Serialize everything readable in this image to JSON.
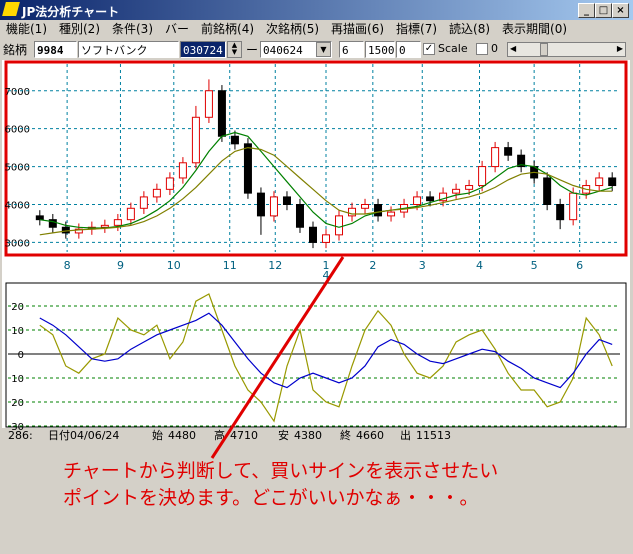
{
  "window": {
    "title": "JP法分析チャート"
  },
  "menu": {
    "items": [
      "機能(1)",
      "種別(2)",
      "条件(3)",
      "バー",
      "前銘柄(4)",
      "次銘柄(5)",
      "再描画(6)",
      "指標(7)",
      "読込(8)",
      "表示期間(0)"
    ]
  },
  "toolbar": {
    "label": "銘柄",
    "code": "9984",
    "name": "ソフトバンク",
    "start": "030724",
    "dash": "ー",
    "end": "040624",
    "field1": "6",
    "field2": "1500",
    "field3": "0",
    "scale": "Scale",
    "check2": "0"
  },
  "chart_data": [
    {
      "type": "candlestick",
      "categories": [
        null,
        null,
        null,
        null,
        null,
        null,
        null,
        null,
        null,
        null,
        null,
        null,
        null,
        null,
        null,
        null,
        null,
        null,
        null,
        null,
        null,
        null,
        null,
        null,
        null,
        null,
        null,
        null,
        null,
        null,
        null,
        null,
        null,
        null,
        null,
        null,
        null,
        null,
        null,
        null,
        null,
        null,
        null,
        null,
        null
      ],
      "open": [
        3700,
        3600,
        3400,
        3250,
        3350,
        3400,
        3450,
        3600,
        3900,
        4200,
        4400,
        4700,
        5100,
        6300,
        7000,
        5800,
        5600,
        4300,
        3700,
        4200,
        4000,
        3400,
        3000,
        3200,
        3700,
        3900,
        4000,
        3700,
        3800,
        4000,
        4200,
        4100,
        4300,
        4400,
        4500,
        5000,
        5500,
        5300,
        5000,
        4700,
        4000,
        3600,
        4300,
        4500,
        4700
      ],
      "high": [
        3850,
        3750,
        3550,
        3500,
        3550,
        3600,
        3750,
        4050,
        4350,
        4550,
        4850,
        5250,
        6600,
        7300,
        7150,
        5950,
        5750,
        4450,
        4350,
        4350,
        4150,
        3550,
        3350,
        3850,
        4050,
        4150,
        4150,
        3950,
        4150,
        4350,
        4350,
        4450,
        4550,
        4650,
        5150,
        5650,
        5650,
        5450,
        5150,
        4850,
        4150,
        4450,
        4650,
        4850,
        4850
      ],
      "low": [
        3450,
        3250,
        3100,
        3100,
        3200,
        3250,
        3300,
        3450,
        3750,
        4050,
        4250,
        4550,
        4950,
        6150,
        5650,
        5450,
        4150,
        3200,
        3550,
        3850,
        3250,
        2850,
        2850,
        3050,
        3550,
        3750,
        3550,
        3550,
        3650,
        3850,
        3950,
        3950,
        4150,
        4250,
        4350,
        4850,
        5150,
        4850,
        4550,
        3850,
        3350,
        3450,
        4150,
        4350,
        4350
      ],
      "close": [
        3600,
        3400,
        3250,
        3350,
        3400,
        3450,
        3600,
        3900,
        4200,
        4400,
        4700,
        5100,
        6300,
        7000,
        5800,
        5600,
        4300,
        3700,
        4200,
        4000,
        3400,
        3000,
        3200,
        3700,
        3900,
        4000,
        3700,
        3800,
        4000,
        4200,
        4100,
        4300,
        4400,
        4500,
        5000,
        5500,
        5300,
        5000,
        4700,
        4000,
        3600,
        4300,
        4500,
        4700,
        4500
      ],
      "up_color": "#e00000",
      "down_color": "#000000",
      "series": [
        {
          "color": "#008000",
          "values": [
            3600,
            3550,
            3450,
            3400,
            3380,
            3380,
            3420,
            3500,
            3650,
            3850,
            4100,
            4450,
            4900,
            5400,
            5800,
            5900,
            5800,
            5400,
            5000,
            4600,
            4200,
            3800,
            3500,
            3400,
            3500,
            3700,
            3800,
            3850,
            3900,
            3950,
            4050,
            4150,
            4250,
            4300,
            4450,
            4700,
            4950,
            5050,
            5000,
            4800,
            4500,
            4300,
            4250,
            4350,
            4450
          ]
        },
        {
          "color": "#808000",
          "values": [
            3200,
            3250,
            3300,
            3330,
            3350,
            3370,
            3400,
            3450,
            3550,
            3700,
            3900,
            4150,
            4450,
            4800,
            5150,
            5400,
            5500,
            5450,
            5300,
            5000,
            4700,
            4400,
            4100,
            3850,
            3750,
            3750,
            3800,
            3850,
            3880,
            3920,
            3980,
            4050,
            4130,
            4200,
            4300,
            4450,
            4650,
            4800,
            4850,
            4800,
            4650,
            4500,
            4400,
            4350,
            4350
          ]
        }
      ],
      "xlim": [
        -0.6,
        44.6
      ],
      "xticks": [
        {
          "value": 2.1,
          "label": "8"
        },
        {
          "value": 6.2,
          "label": "9"
        },
        {
          "value": 10.3,
          "label": "10"
        },
        {
          "value": 14.6,
          "label": "11"
        },
        {
          "value": 18.1,
          "label": "12"
        },
        {
          "value": 22,
          "label": "1"
        },
        {
          "value": 25.6,
          "label": "2"
        },
        {
          "value": 29.4,
          "label": "3"
        },
        {
          "value": 33.8,
          "label": "4"
        },
        {
          "value": 38,
          "label": "5"
        },
        {
          "value": 41.5,
          "label": "6"
        }
      ],
      "year_label": "4",
      "ylim": [
        2800,
        7600
      ],
      "yticks": [
        3000,
        4000,
        5000,
        6000,
        7000
      ],
      "grid": true,
      "grid_color": "#0080a0"
    },
    {
      "type": "line",
      "categories": [
        null,
        null,
        null,
        null,
        null,
        null,
        null,
        null,
        null,
        null,
        null,
        null,
        null,
        null,
        null,
        null,
        null,
        null,
        null,
        null,
        null,
        null,
        null,
        null,
        null,
        null,
        null,
        null,
        null,
        null,
        null,
        null,
        null,
        null,
        null,
        null,
        null,
        null,
        null,
        null,
        null,
        null,
        null,
        null,
        null
      ],
      "series": [
        {
          "color": "#999900",
          "values": [
            12,
            8,
            -5,
            -8,
            -2,
            0,
            15,
            10,
            8,
            12,
            -2,
            5,
            22,
            25,
            10,
            -5,
            -15,
            -20,
            -28,
            -5,
            10,
            -15,
            -20,
            -22,
            -5,
            10,
            18,
            12,
            0,
            -8,
            -10,
            -5,
            5,
            8,
            10,
            2,
            -8,
            -15,
            -15,
            -22,
            -20,
            -10,
            15,
            8,
            -5
          ]
        },
        {
          "color": "#0000cc",
          "values": [
            15,
            12,
            8,
            3,
            -2,
            -3,
            -2,
            2,
            5,
            8,
            10,
            12,
            14,
            17,
            12,
            5,
            -2,
            -8,
            -12,
            -14,
            -10,
            -8,
            -10,
            -12,
            -10,
            -5,
            3,
            6,
            4,
            0,
            -3,
            -4,
            -2,
            0,
            2,
            1,
            -3,
            -6,
            -10,
            -12,
            -14,
            -8,
            0,
            6,
            4
          ]
        }
      ],
      "xlim": [
        -0.6,
        44.6
      ],
      "ylim": [
        -30,
        27.5
      ],
      "yticks": [
        20,
        10,
        0,
        {
          "value": -10,
          "label": "10"
        },
        {
          "value": -20,
          "label": "20"
        },
        {
          "value": -30,
          "label": "30"
        }
      ],
      "grid": true,
      "grid_color": "#008000"
    }
  ],
  "status": {
    "index": "286:",
    "date": "日付04/06/24",
    "open_label": "始",
    "open": 4480,
    "high_label": "高",
    "high": 4710,
    "low_label": "安",
    "low": 4380,
    "close_label": "終",
    "close": 4660,
    "volume_label": "出",
    "volume": 11513
  },
  "annotation": {
    "lines": [
      "チャートから判断して、買いサインを表示させたい",
      "ポイントを決めます。どこがいいかなぁ・・・。"
    ]
  }
}
